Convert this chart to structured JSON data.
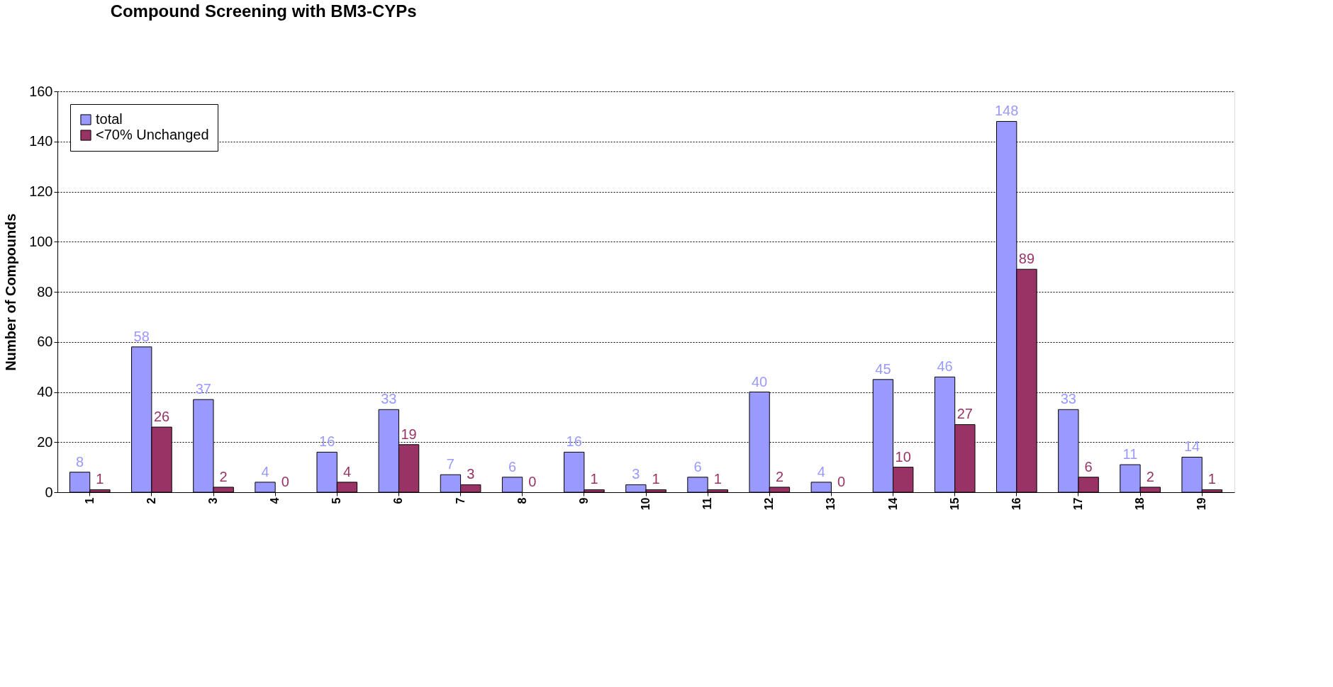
{
  "chart_data": {
    "type": "bar",
    "title": "Compound Screening with BM3-CYPs",
    "ylabel": "Number of Compounds",
    "categories": [
      "1",
      "2",
      "3",
      "4",
      "5",
      "6",
      "7",
      "8",
      "9",
      "10",
      "11",
      "12",
      "13",
      "14",
      "15",
      "16",
      "17",
      "18",
      "19"
    ],
    "series": [
      {
        "name": "total",
        "color": "#9999ff",
        "values": [
          8,
          58,
          37,
          4,
          16,
          33,
          7,
          6,
          16,
          3,
          6,
          40,
          4,
          45,
          46,
          148,
          33,
          11,
          14
        ]
      },
      {
        "name": "<70% Unchanged",
        "color": "#993366",
        "values": [
          1,
          26,
          2,
          0,
          4,
          19,
          3,
          0,
          1,
          1,
          1,
          2,
          0,
          10,
          27,
          89,
          6,
          2,
          1
        ]
      }
    ],
    "ylim": [
      0,
      160
    ],
    "yticks": [
      0,
      20,
      40,
      60,
      80,
      100,
      120,
      140,
      160
    ],
    "grid": "y",
    "legend": "top left",
    "data_labels": true
  }
}
